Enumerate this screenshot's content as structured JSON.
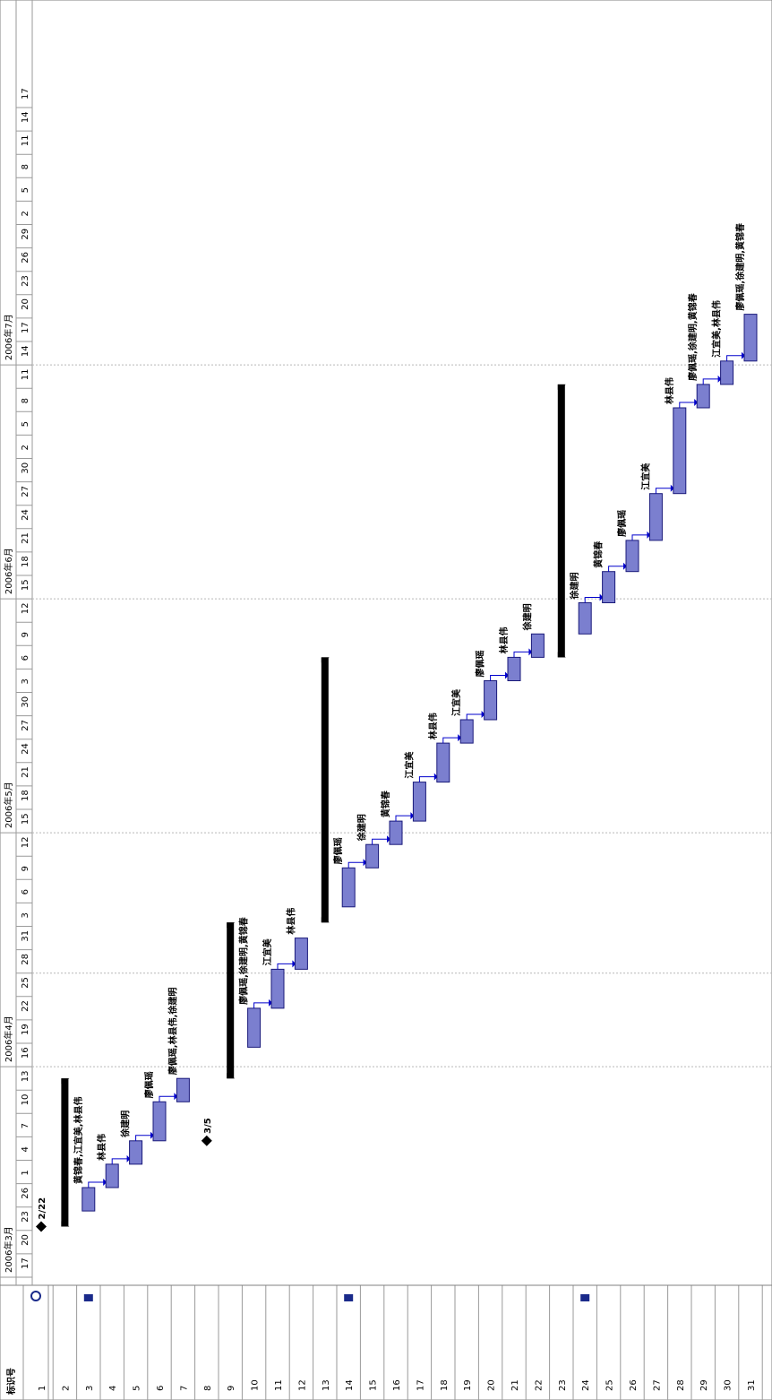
{
  "column_header": "标识号",
  "milestones": [
    "2/22",
    "3/5"
  ],
  "months": [
    {
      "label": "2006年3月",
      "start": 0
    },
    {
      "label": "2006年4月",
      "start": 9
    },
    {
      "label": "2006年5月",
      "start": 19
    },
    {
      "label": "2006年6月",
      "start": 29
    },
    {
      "label": "2006年7月",
      "start": 39
    }
  ],
  "week_ticks": [
    "17",
    "20",
    "23",
    "26",
    "1",
    "4",
    "7",
    "10",
    "13",
    "16",
    "19",
    "22",
    "25",
    "28",
    "31",
    "3",
    "6",
    "9",
    "12",
    "15",
    "18",
    "21",
    "24",
    "27",
    "30",
    "3",
    "6",
    "9",
    "12",
    "15",
    "18",
    "21",
    "24",
    "27",
    "30",
    "2",
    "5",
    "8",
    "11",
    "14",
    "17",
    "20",
    "23",
    "26",
    "29",
    "2",
    "5",
    "8",
    "11",
    "14",
    "17"
  ],
  "row_ids": [
    "1",
    "2",
    "3",
    "4",
    "5",
    "6",
    "7",
    "8",
    "9",
    "10",
    "11",
    "12",
    "13",
    "14",
    "15",
    "16",
    "17",
    "18",
    "19",
    "20",
    "21",
    "22",
    "23",
    "24",
    "25",
    "26",
    "27",
    "28",
    "29",
    "30",
    "31"
  ],
  "tasks": [
    {
      "row": 3,
      "start": "2/24",
      "end": "2/27",
      "resources": "黄锦春,江宜美,林县伟"
    },
    {
      "row": 4,
      "start": "2/27",
      "end": "3/02",
      "resources": "林县伟"
    },
    {
      "row": 5,
      "start": "3/02",
      "end": "3/05",
      "resources": "徐建明"
    },
    {
      "row": 6,
      "start": "3/05",
      "end": "3/10",
      "resources": "廖佩瑶"
    },
    {
      "row": 7,
      "start": "3/10",
      "end": "3/13",
      "resources": "廖佩瑶,林县伟,徐建明"
    },
    {
      "row": 10,
      "start": "3/17",
      "end": "3/22",
      "resources": "廖佩瑶,徐建明,黄锦春"
    },
    {
      "row": 11,
      "start": "3/22",
      "end": "3/27",
      "resources": "江宜美"
    },
    {
      "row": 12,
      "start": "3/27",
      "end": "3/31",
      "resources": "林县伟"
    },
    {
      "row": 14,
      "start": "4/04",
      "end": "4/09",
      "resources": "廖佩瑶"
    },
    {
      "row": 15,
      "start": "4/09",
      "end": "4/12",
      "resources": "徐建明"
    },
    {
      "row": 16,
      "start": "4/12",
      "end": "4/15",
      "resources": "黄锦春"
    },
    {
      "row": 17,
      "start": "4/15",
      "end": "4/20",
      "resources": "江宜美"
    },
    {
      "row": 18,
      "start": "4/20",
      "end": "4/25",
      "resources": "林县伟"
    },
    {
      "row": 19,
      "start": "4/25",
      "end": "4/28",
      "resources": "江宜美"
    },
    {
      "row": 20,
      "start": "4/28",
      "end": "5/03",
      "resources": "廖佩瑶"
    },
    {
      "row": 21,
      "start": "5/03",
      "end": "5/06",
      "resources": "林县伟"
    },
    {
      "row": 22,
      "start": "5/06",
      "end": "5/09",
      "resources": "徐建明"
    },
    {
      "row": 24,
      "start": "5/09",
      "end": "5/13",
      "resources": "徐建明"
    },
    {
      "row": 25,
      "start": "5/13",
      "end": "5/17",
      "resources": "黄锦春"
    },
    {
      "row": 26,
      "start": "5/17",
      "end": "5/21",
      "resources": "廖佩瑶"
    },
    {
      "row": 27,
      "start": "5/21",
      "end": "5/27",
      "resources": "江宜美"
    },
    {
      "row": 28,
      "start": "5/27",
      "end": "6/07",
      "resources": "林县伟"
    },
    {
      "row": 29,
      "start": "6/07",
      "end": "6/10",
      "resources": "廖佩瑶,徐建明,黄锦春"
    },
    {
      "row": 30,
      "start": "6/10",
      "end": "6/13",
      "resources": "江宜美,林县伟"
    },
    {
      "row": 31,
      "start": "6/13",
      "end": "6/19",
      "resources": "廖佩瑶,徐建明,黄锦春"
    }
  ],
  "summaries": [
    {
      "row": 2,
      "start": "2/22",
      "end": "3/13"
    },
    {
      "row": 9,
      "start": "3/13",
      "end": "4/02"
    },
    {
      "row": 13,
      "start": "4/02",
      "end": "5/06"
    },
    {
      "row": 23,
      "start": "5/06",
      "end": "6/10"
    }
  ],
  "indicator_rows": [
    3,
    14,
    24
  ],
  "colors": {
    "task_fill": "#7b7fcf",
    "task_border": "#1a1a7a",
    "summary": "#000000",
    "link": "#0000cc",
    "indicator": "#1a2a8a"
  }
}
